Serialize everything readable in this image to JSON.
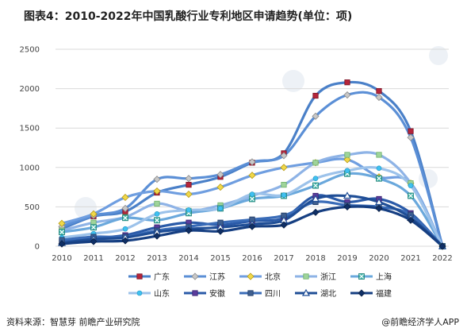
{
  "title": "图表4：2010-2022年中国乳酸行业专利地区申请趋势(单位：项)",
  "source": "资料来源：智慧芽 前瞻产业研究院",
  "credit": "@前瞻经济学人APP",
  "chart_data": {
    "type": "line",
    "title": "图表4：2010-2022年中国乳酸行业专利地区申请趋势(单位：项)",
    "xlabel": "",
    "ylabel": "",
    "x": [
      "2010",
      "2011",
      "2012",
      "2013",
      "2014",
      "2015",
      "2016",
      "2017",
      "2018",
      "2019",
      "2020",
      "2021",
      "2022"
    ],
    "ylim": [
      0,
      2500
    ],
    "yticks": [
      0,
      500,
      1000,
      1500,
      2000,
      2500
    ],
    "grid": true,
    "legend": "bottom",
    "smooth": true,
    "series": [
      {
        "name": "广东",
        "color": "#4a80c8",
        "marker": "square-red",
        "values": [
          220,
          380,
          440,
          680,
          780,
          880,
          1060,
          1180,
          1910,
          2080,
          1970,
          1460,
          0
        ]
      },
      {
        "name": "江苏",
        "color": "#5b8fd6",
        "marker": "diamond-gray",
        "values": [
          250,
          390,
          480,
          850,
          860,
          910,
          1070,
          1150,
          1650,
          1920,
          1890,
          1380,
          0
        ]
      },
      {
        "name": "北京",
        "color": "#6f9ee0",
        "marker": "diamond-yellow",
        "values": [
          290,
          410,
          620,
          700,
          660,
          750,
          900,
          1000,
          1060,
          1100,
          880,
          800,
          0
        ]
      },
      {
        "name": "浙江",
        "color": "#8eb3e6",
        "marker": "square-green",
        "values": [
          200,
          300,
          370,
          540,
          450,
          520,
          640,
          780,
          1060,
          1160,
          1160,
          800,
          0
        ]
      },
      {
        "name": "上海",
        "color": "#6aa8dc",
        "marker": "x-teal",
        "values": [
          180,
          240,
          360,
          330,
          420,
          480,
          600,
          640,
          770,
          920,
          860,
          640,
          0
        ]
      },
      {
        "name": "山东",
        "color": "#9cc2ea",
        "marker": "dot-cyan",
        "values": [
          110,
          160,
          220,
          410,
          460,
          480,
          660,
          650,
          860,
          960,
          990,
          770,
          0
        ]
      },
      {
        "name": "安徽",
        "color": "#2a5aa8",
        "marker": "square-purple",
        "values": [
          60,
          100,
          140,
          240,
          300,
          270,
          320,
          360,
          640,
          560,
          600,
          420,
          0
        ]
      },
      {
        "name": "四川",
        "color": "#3a6cb8",
        "marker": "square-blue",
        "values": [
          80,
          120,
          120,
          200,
          250,
          300,
          340,
          390,
          560,
          520,
          500,
          400,
          0
        ]
      },
      {
        "name": "湖北",
        "color": "#1f4e96",
        "marker": "triangle-white",
        "values": [
          40,
          90,
          110,
          180,
          220,
          240,
          280,
          330,
          600,
          640,
          560,
          360,
          0
        ]
      },
      {
        "name": "福建",
        "color": "#163f82",
        "marker": "diamond-navy",
        "values": [
          30,
          60,
          70,
          130,
          200,
          190,
          250,
          270,
          430,
          500,
          480,
          330,
          0
        ]
      }
    ]
  }
}
